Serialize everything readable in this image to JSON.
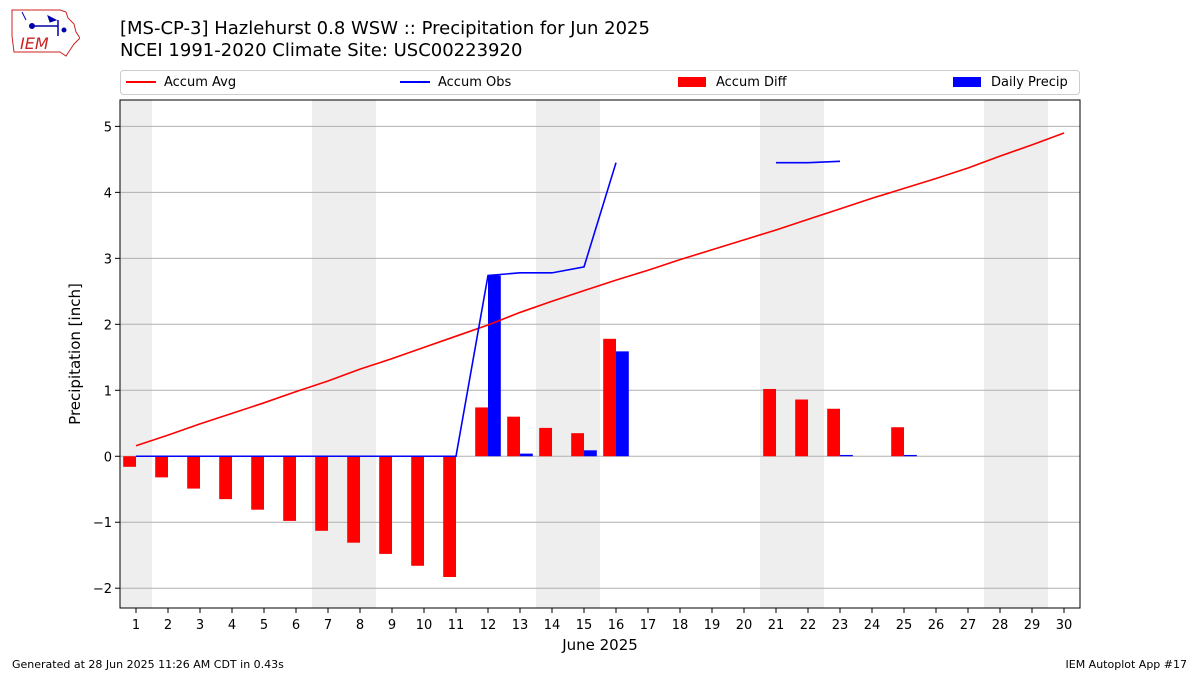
{
  "header": {
    "logo_text": "IEM",
    "title_line1": "[MS-CP-3] Hazlehurst 0.8 WSW :: Precipitation for Jun 2025",
    "title_line2": "NCEI 1991-2020 Climate Site: USC00223920"
  },
  "footer": {
    "left": "Generated at 28 Jun 2025 11:26 AM CDT in 0.43s",
    "right": "IEM Autoplot App #17"
  },
  "colors": {
    "accum_avg": "#ff0000",
    "accum_obs": "#0000ff",
    "accum_diff": "#ff0000",
    "daily_precip": "#0000ff",
    "weekend_shade": "#eeeeee",
    "grid": "#b0b0b0"
  },
  "chart_data": {
    "type": "bar",
    "xlabel": "June 2025",
    "ylabel": "Precipitation [inch]",
    "xlim": [
      0.5,
      30.5
    ],
    "ylim": [
      -2.3,
      5.4
    ],
    "yticks": [
      -2,
      -1,
      0,
      1,
      2,
      3,
      4,
      5
    ],
    "x": [
      1,
      2,
      3,
      4,
      5,
      6,
      7,
      8,
      9,
      10,
      11,
      12,
      13,
      14,
      15,
      16,
      17,
      18,
      19,
      20,
      21,
      22,
      23,
      24,
      25,
      26,
      27,
      28,
      29,
      30
    ],
    "grid": "horizontal",
    "legend_placement": "top, above plot",
    "weekend_shading_days": [
      [
        0.5,
        1.5
      ],
      [
        6.5,
        8.5
      ],
      [
        13.5,
        15.5
      ],
      [
        20.5,
        22.5
      ],
      [
        27.5,
        29.5
      ]
    ],
    "series": [
      {
        "name": "Accum Avg",
        "kind": "line",
        "values": [
          0.16,
          0.32,
          0.49,
          0.65,
          0.81,
          0.98,
          1.14,
          1.32,
          1.48,
          1.65,
          1.82,
          1.99,
          2.18,
          2.35,
          2.51,
          2.67,
          2.82,
          2.98,
          3.13,
          3.28,
          3.43,
          3.59,
          3.75,
          3.91,
          4.06,
          4.21,
          4.37,
          4.55,
          4.72,
          4.9
        ]
      },
      {
        "name": "Accum Obs",
        "kind": "line",
        "values": [
          0,
          0,
          0,
          0,
          0,
          0,
          0,
          0,
          0,
          0,
          0,
          2.74,
          2.78,
          2.78,
          2.87,
          4.45,
          null,
          null,
          null,
          null,
          4.45,
          4.45,
          4.47,
          null,
          null,
          null,
          null,
          null,
          null,
          null
        ]
      },
      {
        "name": "Accum Diff",
        "kind": "bar",
        "values": [
          -0.16,
          -0.32,
          -0.49,
          -0.65,
          -0.81,
          -0.98,
          -1.13,
          -1.31,
          -1.48,
          -1.66,
          -1.83,
          0.74,
          0.6,
          0.43,
          0.35,
          1.78,
          null,
          null,
          null,
          null,
          1.02,
          0.86,
          0.72,
          null,
          0.44,
          null,
          null,
          null,
          null,
          null
        ]
      },
      {
        "name": "Daily Precip",
        "kind": "bar",
        "values": [
          0,
          0,
          0,
          0,
          0,
          0,
          0,
          0,
          0,
          0,
          0,
          2.74,
          0.04,
          0,
          0.09,
          1.59,
          null,
          null,
          null,
          null,
          0,
          0,
          0.02,
          null,
          0.02,
          null,
          null,
          null,
          null,
          null
        ]
      }
    ]
  }
}
